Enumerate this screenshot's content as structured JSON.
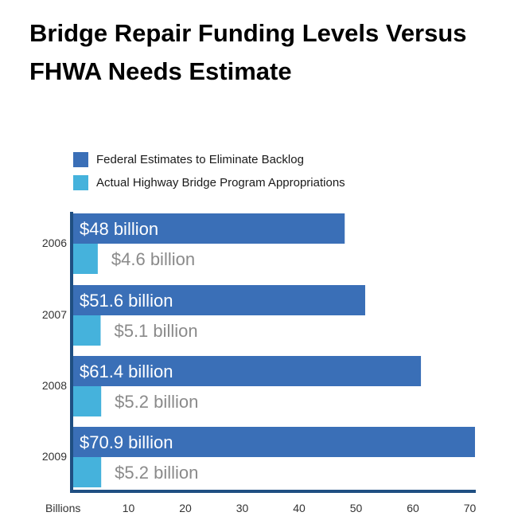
{
  "title": "Bridge Repair Funding Levels Versus FHWA Needs Estimate",
  "colors": {
    "federal": "#3a6fb7",
    "actual": "#45b2dc",
    "axis": "#1f4f82",
    "label_actual": "#8a8a8a"
  },
  "legend": [
    {
      "label": "Federal Estimates to Eliminate Backlog",
      "series": "federal"
    },
    {
      "label": "Actual Highway Bridge Program Appropriations",
      "series": "actual"
    }
  ],
  "chart_data": {
    "type": "bar",
    "orientation": "horizontal",
    "categories": [
      "2006",
      "2007",
      "2008",
      "2009"
    ],
    "series": [
      {
        "name": "Federal Estimates to Eliminate Backlog",
        "values": [
          48,
          51.6,
          61.4,
          70.9
        ],
        "labels": [
          "$48 billion",
          "$51.6 billion",
          "$61.4 billion",
          "$70.9 billion"
        ]
      },
      {
        "name": "Actual Highway Bridge Program Appropriations",
        "values": [
          4.6,
          5.1,
          5.2,
          5.2
        ],
        "labels": [
          "$4.6 billion",
          "$5.1 billion",
          "$5.2 billion",
          "$5.2 billion"
        ]
      }
    ],
    "x_unit_label": "Billions",
    "x_ticks": [
      10,
      20,
      30,
      40,
      50,
      60,
      70
    ],
    "xlim": [
      0,
      70.9
    ],
    "grid": false
  }
}
